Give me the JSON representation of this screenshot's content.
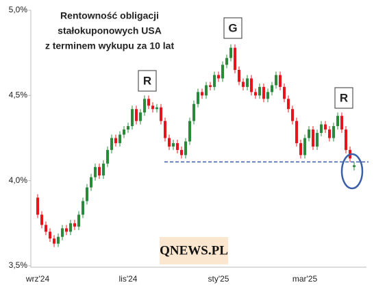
{
  "chart_data": {
    "type": "candlestick",
    "title_lines": [
      "Rentowność obligacji",
      "stałokuponowych  USA",
      "z terminem wykupu za 10 lat"
    ],
    "annotations": [
      "R",
      "G",
      "R"
    ],
    "watermark": "QNEWS.PL",
    "up_color": "#2a8a3a",
    "down_color": "#e8141c",
    "support_level": 4.11,
    "categories": [
      "wrz'24",
      null,
      null,
      null,
      null,
      null,
      null,
      null,
      null,
      null,
      null,
      null,
      null,
      null,
      null,
      null,
      null,
      null,
      null,
      null,
      null,
      null,
      "lis'24",
      null,
      null,
      null,
      null,
      null,
      null,
      null,
      null,
      null,
      null,
      null,
      null,
      null,
      null,
      null,
      null,
      null,
      null,
      null,
      null,
      null,
      "sty'25",
      null,
      null,
      null,
      null,
      null,
      null,
      null,
      null,
      null,
      null,
      null,
      null,
      null,
      null,
      null,
      null,
      null,
      null,
      null,
      null,
      "mar'25",
      null,
      null,
      null,
      null,
      null,
      null,
      null,
      null,
      null,
      null,
      null,
      null
    ],
    "open": [
      3.9,
      3.8,
      3.74,
      3.7,
      3.66,
      3.63,
      3.67,
      3.72,
      3.7,
      3.75,
      3.73,
      3.8,
      3.88,
      3.96,
      4.02,
      4.08,
      4.03,
      4.1,
      4.18,
      4.25,
      4.22,
      4.27,
      4.3,
      4.32,
      4.42,
      4.35,
      4.4,
      4.48,
      4.44,
      4.42,
      4.43,
      4.35,
      4.25,
      4.2,
      4.22,
      4.18,
      4.15,
      4.23,
      4.35,
      4.45,
      4.52,
      4.5,
      4.56,
      4.55,
      4.62,
      4.6,
      4.68,
      4.72,
      4.78,
      4.65,
      4.58,
      4.55,
      4.6,
      4.52,
      4.5,
      4.55,
      4.48,
      4.52,
      4.56,
      4.62,
      4.55,
      4.48,
      4.42,
      4.35,
      4.22,
      4.15,
      4.25,
      4.3,
      4.2,
      4.28,
      4.33,
      4.3,
      4.25,
      4.32,
      4.38,
      4.3,
      4.18,
      4.08
    ],
    "high": [
      3.92,
      3.82,
      3.76,
      3.72,
      3.68,
      3.69,
      3.74,
      3.74,
      3.77,
      3.77,
      3.82,
      3.9,
      3.98,
      4.04,
      4.1,
      4.1,
      4.12,
      4.2,
      4.27,
      4.27,
      4.29,
      4.32,
      4.34,
      4.44,
      4.44,
      4.42,
      4.5,
      4.5,
      4.46,
      4.45,
      4.45,
      4.37,
      4.27,
      4.24,
      4.24,
      4.2,
      4.25,
      4.37,
      4.47,
      4.54,
      4.54,
      4.58,
      4.58,
      4.64,
      4.64,
      4.7,
      4.74,
      4.8,
      4.8,
      4.67,
      4.6,
      4.62,
      4.62,
      4.54,
      4.57,
      4.57,
      4.54,
      4.58,
      4.64,
      4.64,
      4.57,
      4.5,
      4.44,
      4.37,
      4.24,
      4.27,
      4.32,
      4.32,
      4.3,
      4.35,
      4.35,
      4.32,
      4.34,
      4.4,
      4.4,
      4.32,
      4.2,
      4.11
    ],
    "low": [
      3.78,
      3.72,
      3.68,
      3.64,
      3.61,
      3.61,
      3.65,
      3.68,
      3.68,
      3.71,
      3.71,
      3.78,
      3.86,
      3.94,
      4.0,
      4.01,
      4.01,
      4.08,
      4.16,
      4.2,
      4.2,
      4.25,
      4.28,
      4.3,
      4.33,
      4.33,
      4.38,
      4.42,
      4.4,
      4.4,
      4.33,
      4.23,
      4.18,
      4.18,
      4.16,
      4.13,
      4.13,
      4.21,
      4.33,
      4.43,
      4.48,
      4.48,
      4.53,
      4.53,
      4.58,
      4.58,
      4.66,
      4.7,
      4.63,
      4.56,
      4.53,
      4.53,
      4.5,
      4.48,
      4.48,
      4.46,
      4.46,
      4.5,
      4.54,
      4.53,
      4.46,
      4.4,
      4.33,
      4.2,
      4.13,
      4.13,
      4.23,
      4.18,
      4.18,
      4.26,
      4.28,
      4.23,
      4.23,
      4.3,
      4.28,
      4.16,
      4.11,
      4.06
    ],
    "close": [
      3.8,
      3.74,
      3.7,
      3.66,
      3.63,
      3.67,
      3.72,
      3.7,
      3.75,
      3.73,
      3.8,
      3.88,
      3.96,
      4.02,
      4.08,
      4.03,
      4.1,
      4.18,
      4.25,
      4.22,
      4.27,
      4.3,
      4.32,
      4.42,
      4.35,
      4.4,
      4.48,
      4.44,
      4.42,
      4.43,
      4.35,
      4.25,
      4.2,
      4.22,
      4.18,
      4.15,
      4.23,
      4.35,
      4.45,
      4.52,
      4.5,
      4.56,
      4.55,
      4.62,
      4.6,
      4.68,
      4.72,
      4.78,
      4.65,
      4.58,
      4.55,
      4.6,
      4.52,
      4.5,
      4.55,
      4.48,
      4.52,
      4.56,
      4.62,
      4.55,
      4.48,
      4.42,
      4.35,
      4.22,
      4.15,
      4.25,
      4.3,
      4.2,
      4.28,
      4.33,
      4.3,
      4.25,
      4.32,
      4.38,
      4.3,
      4.18,
      4.13,
      4.09
    ],
    "ylim": [
      3.5,
      5.0
    ],
    "yticks": [
      {
        "value": 3.5,
        "label": "3,5%"
      },
      {
        "value": 4.0,
        "label": "4,0%"
      },
      {
        "value": 4.5,
        "label": "4,5%"
      },
      {
        "value": 5.0,
        "label": "5,0%"
      }
    ]
  }
}
